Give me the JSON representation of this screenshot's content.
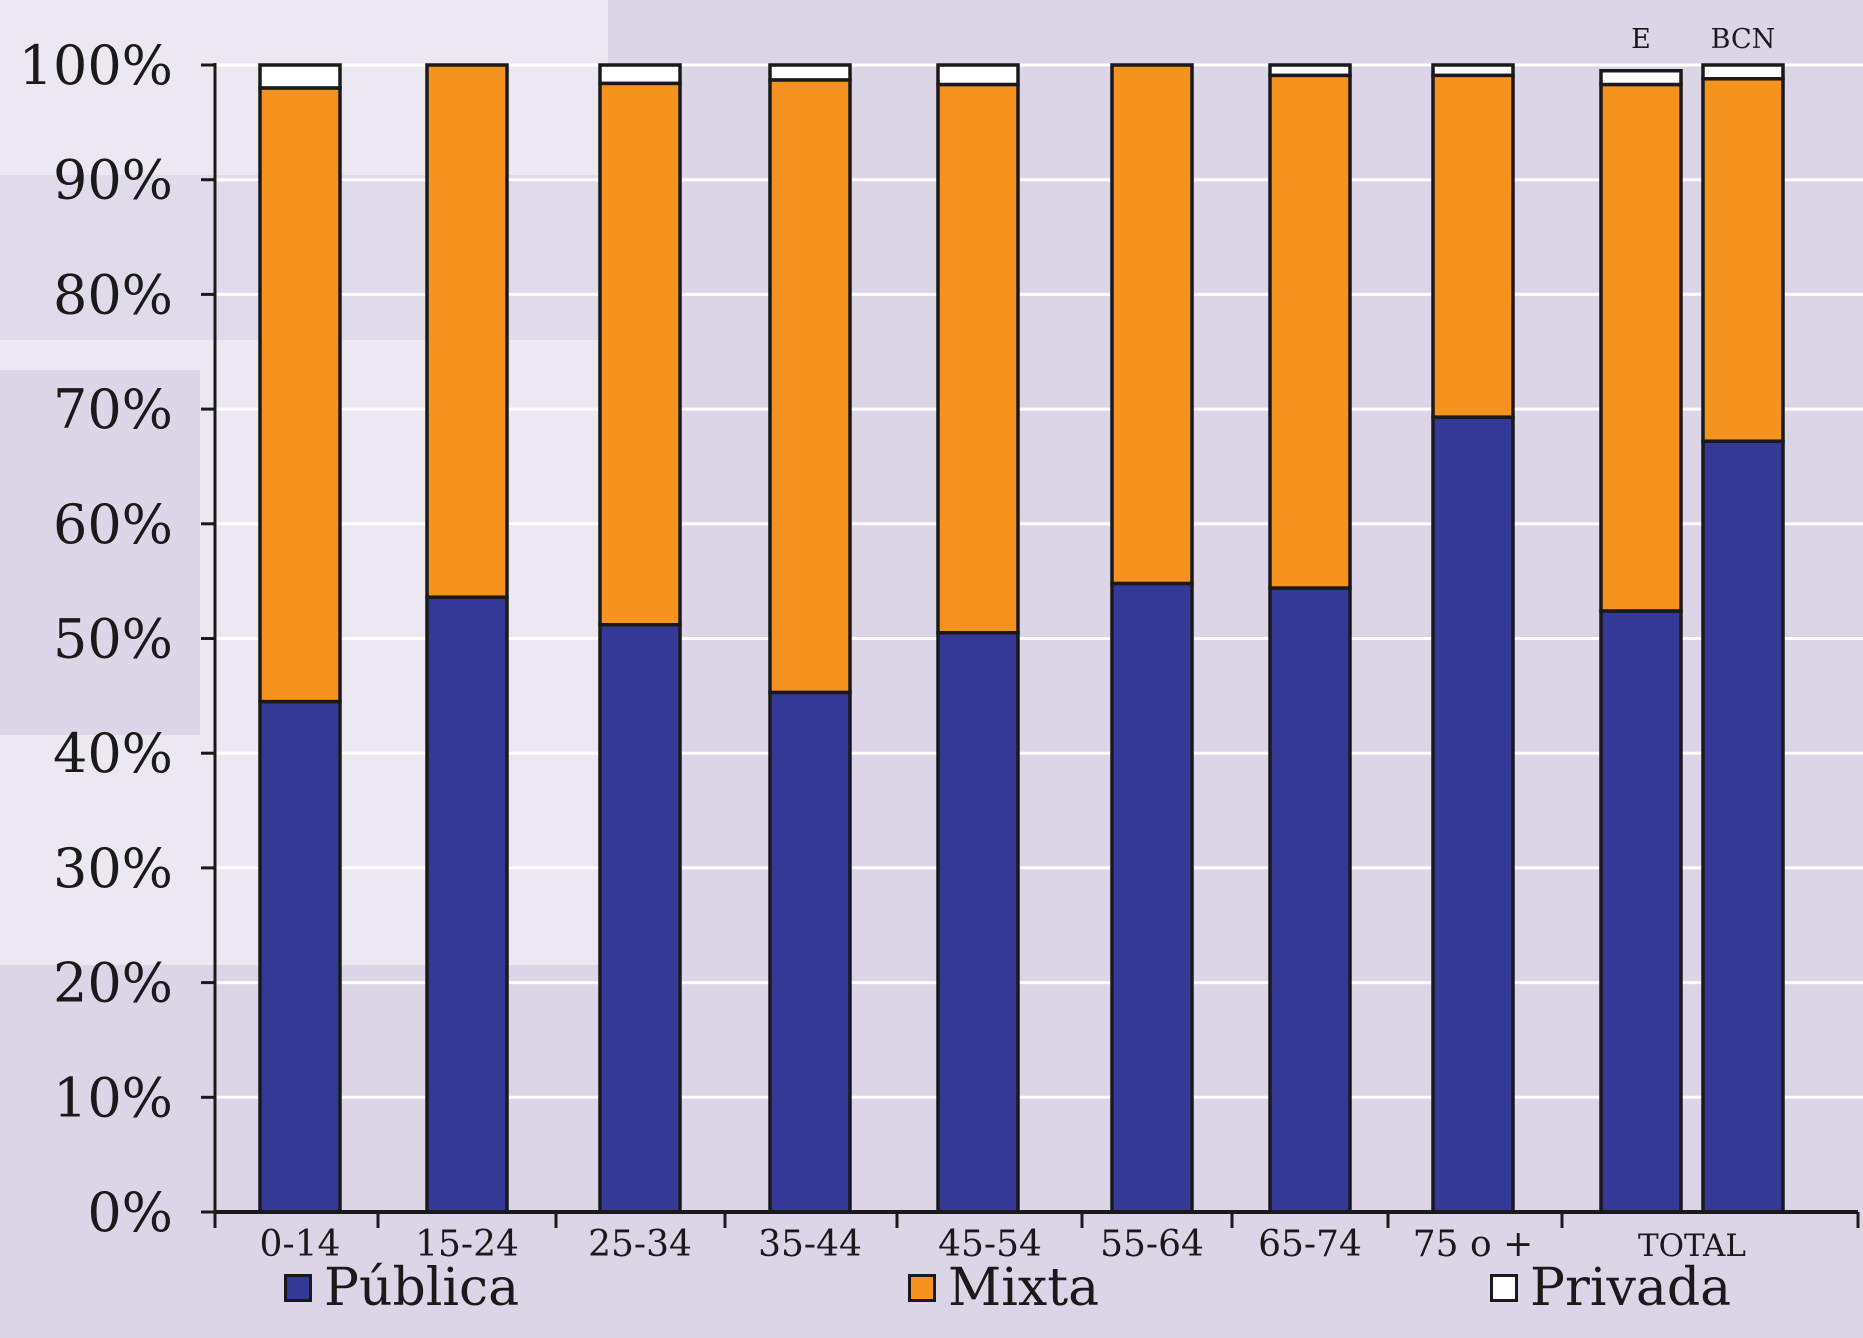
{
  "chart_data": {
    "type": "bar",
    "stacked": true,
    "categories": [
      "0-14",
      "15-24",
      "25-34",
      "35-44",
      "45-54",
      "55-64",
      "65-74",
      "75 o +",
      "E",
      "BCN"
    ],
    "x_tick_labels": [
      "0-14",
      "15-24",
      "25-34",
      "35-44",
      "45-54",
      "55-64",
      "65-74",
      "75 o +",
      "TOTAL"
    ],
    "top_labels": [
      "E",
      "BCN"
    ],
    "series": [
      {
        "name": "Pública",
        "color": "#343896",
        "values": [
          44.5,
          53.6,
          51.2,
          45.3,
          50.5,
          54.8,
          54.4,
          69.3,
          52.4,
          67.2
        ]
      },
      {
        "name": "Mixta",
        "color": "#f6921e",
        "values": [
          53.5,
          46.4,
          47.2,
          53.4,
          47.8,
          45.2,
          44.7,
          29.8,
          45.9,
          31.6
        ]
      },
      {
        "name": "Privada",
        "color": "#ffffff",
        "values": [
          2.0,
          0.0,
          1.6,
          1.3,
          1.7,
          0.0,
          0.9,
          0.9,
          1.2,
          1.2
        ]
      }
    ],
    "y_ticks": [
      "0%",
      "10%",
      "20%",
      "30%",
      "40%",
      "50%",
      "60%",
      "70%",
      "80%",
      "90%",
      "100%"
    ],
    "ylim": [
      0,
      100
    ],
    "grid": true,
    "legend_position": "bottom"
  }
}
